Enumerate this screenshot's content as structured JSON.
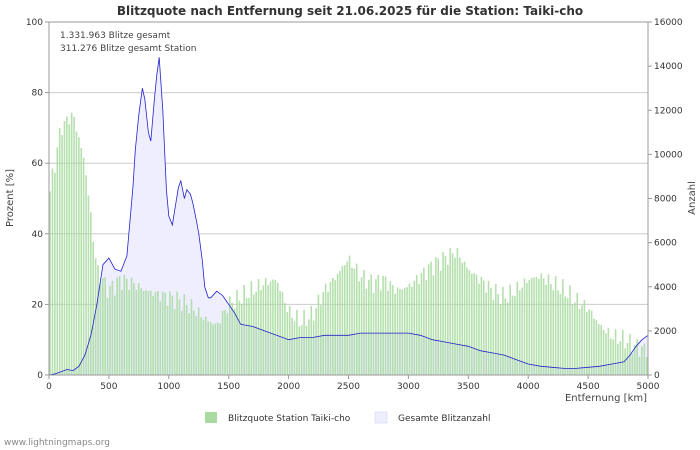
{
  "chart_data": {
    "type": "bar",
    "title": "Blitzquote nach Entfernung seit 21.06.2025 für die Station: Taiki-cho",
    "xlabel": "Entfernung   [km]",
    "ylabel_left": "Prozent   [%]",
    "ylabel_right": "Anzahl",
    "xlim": [
      0,
      5000
    ],
    "ylim_left": [
      0,
      100
    ],
    "ylim_right": [
      0,
      16000
    ],
    "x_ticks": [
      0,
      500,
      1000,
      1500,
      2000,
      2500,
      3000,
      3500,
      4000,
      4500,
      5000
    ],
    "y_ticks_left": [
      0,
      20,
      40,
      60,
      80,
      100
    ],
    "y_ticks_right": [
      0,
      2000,
      4000,
      6000,
      8000,
      10000,
      12000,
      14000,
      16000
    ],
    "grid": true,
    "annotations": [
      "1.331.963 Blitze gesamt",
      "311.276 Blitze gesamt Station"
    ],
    "series": [
      {
        "name": "Blitzquote Station Taiki-cho",
        "axis": "left",
        "style": "bars",
        "color": "#a8dba0",
        "x": [
          0,
          100,
          200,
          300,
          400,
          500,
          600,
          700,
          800,
          900,
          1000,
          1100,
          1200,
          1300,
          1400,
          1500,
          1600,
          1700,
          1800,
          1900,
          2000,
          2100,
          2200,
          2300,
          2400,
          2500,
          2600,
          2700,
          2800,
          2900,
          3000,
          3100,
          3200,
          3300,
          3400,
          3500,
          3600,
          3700,
          3800,
          3900,
          4000,
          4100,
          4200,
          4300,
          4400,
          4500,
          4600,
          4700,
          4800,
          4900,
          5000
        ],
        "values": [
          50,
          70,
          74,
          60,
          30,
          24,
          27,
          26,
          24,
          23,
          22,
          21,
          19,
          16,
          14,
          20,
          22,
          24,
          26,
          27,
          18,
          15,
          17,
          24,
          28,
          33,
          28,
          26,
          27,
          24,
          25,
          28,
          31,
          33,
          35,
          30,
          27,
          24,
          22,
          24,
          27,
          28,
          26,
          24,
          21,
          19,
          14,
          11,
          10,
          8,
          7
        ]
      },
      {
        "name": "Gesamte Blitzanzahl",
        "axis": "right",
        "style": "area-line",
        "color": "#2222cc",
        "fill": "#eeeeff",
        "x": [
          0,
          50,
          100,
          150,
          200,
          250,
          300,
          350,
          400,
          450,
          500,
          550,
          600,
          650,
          700,
          720,
          750,
          780,
          800,
          830,
          850,
          880,
          900,
          920,
          950,
          980,
          1000,
          1030,
          1050,
          1080,
          1100,
          1130,
          1150,
          1180,
          1200,
          1230,
          1250,
          1280,
          1300,
          1330,
          1350,
          1400,
          1450,
          1500,
          1550,
          1600,
          1700,
          1800,
          1900,
          2000,
          2100,
          2200,
          2300,
          2400,
          2500,
          2600,
          2700,
          2800,
          2900,
          3000,
          3100,
          3200,
          3300,
          3400,
          3500,
          3600,
          3700,
          3800,
          3900,
          4000,
          4100,
          4200,
          4300,
          4400,
          4500,
          4600,
          4700,
          4800,
          4850,
          4900,
          4950,
          5000
        ],
        "values": [
          0,
          50,
          150,
          250,
          200,
          400,
          900,
          1800,
          3200,
          5000,
          5300,
          4800,
          4700,
          5400,
          8500,
          10200,
          11800,
          13000,
          12500,
          11000,
          10600,
          12500,
          13600,
          14400,
          12000,
          8400,
          7200,
          6800,
          7500,
          8500,
          8800,
          8000,
          8400,
          8200,
          7800,
          7000,
          6400,
          5200,
          4000,
          3500,
          3500,
          3800,
          3600,
          3200,
          2800,
          2300,
          2200,
          2000,
          1800,
          1600,
          1700,
          1700,
          1800,
          1800,
          1800,
          1900,
          1900,
          1900,
          1900,
          1900,
          1800,
          1600,
          1500,
          1400,
          1300,
          1100,
          1000,
          900,
          700,
          500,
          400,
          350,
          300,
          300,
          350,
          400,
          500,
          600,
          900,
          1300,
          1600,
          1800
        ]
      }
    ]
  },
  "legend": {
    "item1": "Blitzquote Station Taiki-cho",
    "item2": "Gesamte Blitzanzahl"
  },
  "footer": "www.lightningmaps.org"
}
